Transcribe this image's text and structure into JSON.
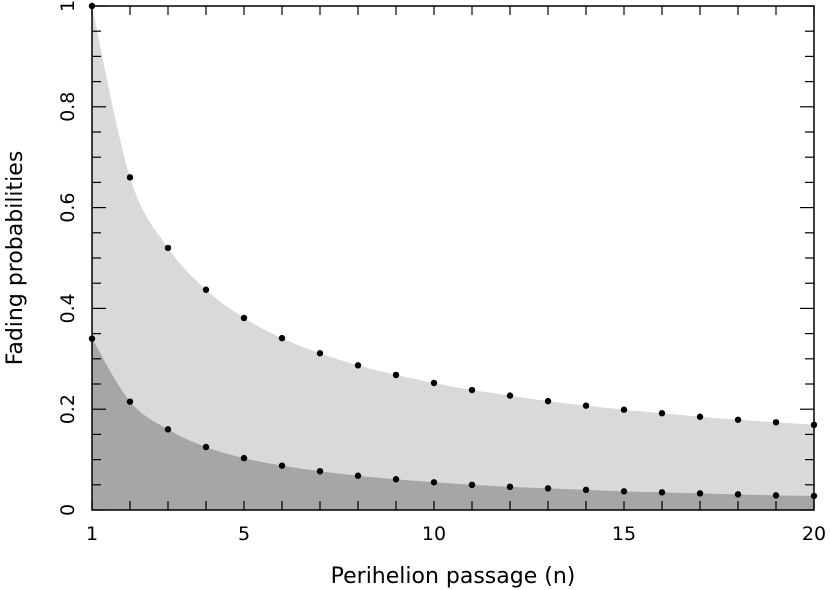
{
  "chart_data": {
    "type": "area",
    "title": "",
    "xlabel": "Perihelion passage (n)",
    "ylabel": "Fading probabilities",
    "xlim": [
      1,
      20
    ],
    "ylim": [
      0,
      1
    ],
    "xticks_labeled": [
      1,
      5,
      10,
      15,
      20
    ],
    "yticks_labeled": [
      {
        "value": 0,
        "label": "0"
      },
      {
        "value": 0.2,
        "label": "0.2"
      },
      {
        "value": 0.4,
        "label": "0.4"
      },
      {
        "value": 0.6,
        "label": "0.6"
      },
      {
        "value": 0.8,
        "label": "0.8"
      },
      {
        "value": 1,
        "label": "1"
      }
    ],
    "grid": false,
    "colors": {
      "upper_fill": "#d9d9d9",
      "lower_fill": "#a6a6a6",
      "points": "#000000"
    },
    "x": [
      1,
      2,
      3,
      4,
      5,
      6,
      7,
      8,
      9,
      10,
      11,
      12,
      13,
      14,
      15,
      16,
      17,
      18,
      19,
      20
    ],
    "series": [
      {
        "values": [
          1.0,
          0.66,
          0.52,
          0.437,
          0.381,
          0.341,
          0.311,
          0.287,
          0.268,
          0.252,
          0.238,
          0.227,
          0.216,
          0.207,
          0.199,
          0.192,
          0.185,
          0.179,
          0.174,
          0.169
        ]
      },
      {
        "values": [
          0.34,
          0.215,
          0.16,
          0.125,
          0.103,
          0.088,
          0.077,
          0.068,
          0.061,
          0.055,
          0.05,
          0.046,
          0.043,
          0.04,
          0.037,
          0.035,
          0.033,
          0.031,
          0.029,
          0.028
        ]
      }
    ]
  }
}
